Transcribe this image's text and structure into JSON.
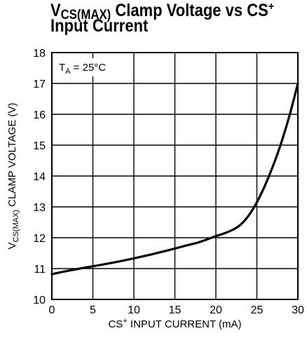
{
  "title": {
    "line1_prefix": "V",
    "line1_sub": "CS(MAX)",
    "line1_text": " Clamp Voltage vs CS",
    "line1_sup": "+",
    "line2": "Input Current"
  },
  "annotation": {
    "prefix": "T",
    "sub": "A",
    "text": " = 25°C"
  },
  "chart_data": {
    "type": "line",
    "title": "VCS(MAX) Clamp Voltage vs CS+ Input Current",
    "xlabel": "CS+ INPUT CURRENT (mA)",
    "ylabel": "VCS(MAX) CLAMP VOLTAGE (V)",
    "xlim": [
      0,
      30
    ],
    "ylim": [
      10,
      18
    ],
    "xticks": [
      0,
      5,
      10,
      15,
      20,
      25,
      30
    ],
    "yticks": [
      10,
      11,
      12,
      13,
      14,
      15,
      16,
      17,
      18
    ],
    "grid": true,
    "series": [
      {
        "x": [
          0,
          2,
          4,
          6,
          8,
          10,
          12,
          14,
          16,
          18,
          20,
          21,
          22,
          23,
          24,
          25,
          26,
          27,
          28,
          29,
          30
        ],
        "y": [
          10.82,
          10.93,
          11.03,
          11.12,
          11.22,
          11.33,
          11.45,
          11.58,
          11.72,
          11.86,
          12.05,
          12.14,
          12.25,
          12.42,
          12.72,
          13.15,
          13.7,
          14.35,
          15.1,
          15.98,
          17.0
        ]
      }
    ]
  },
  "axis_labels": {
    "x_prefix": "CS",
    "x_sup": "+",
    "x_text": " INPUT CURRENT (mA)",
    "y_prefix": "V",
    "y_sub": "CS(MAX)",
    "y_text": " CLAMP VOLTAGE (V)"
  },
  "colors": {
    "line": "#000000",
    "grid": "#000000",
    "background": "#ffffff"
  }
}
